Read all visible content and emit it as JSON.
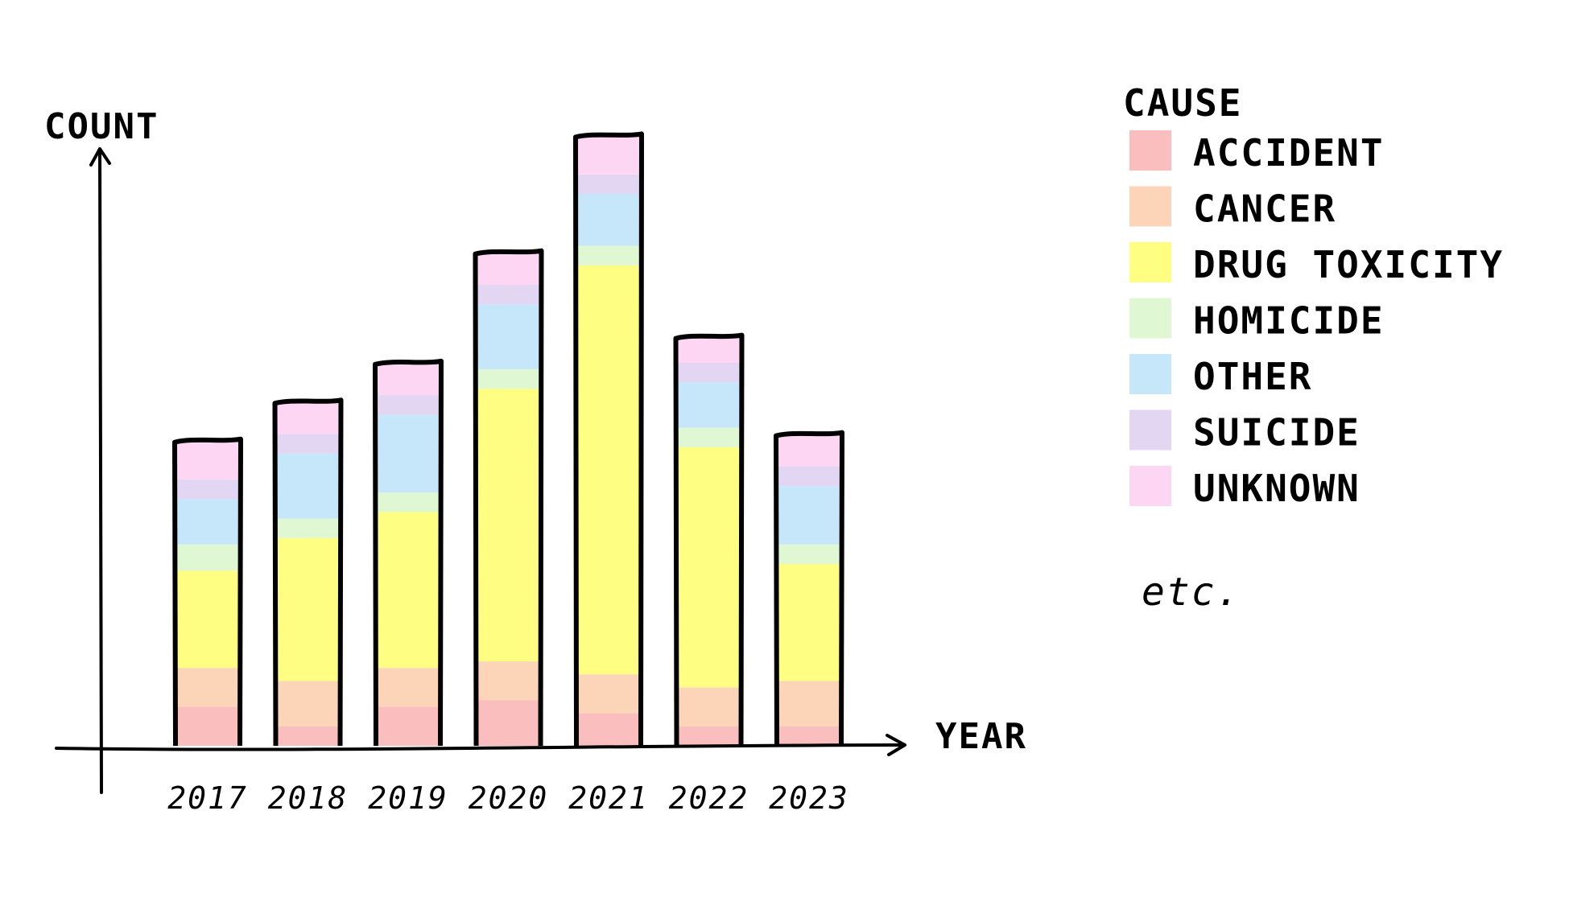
{
  "chart_data": {
    "type": "bar",
    "stacked": true,
    "xlabel": "YEAR",
    "ylabel": "COUNT",
    "categories": [
      "2017",
      "2018",
      "2019",
      "2020",
      "2021",
      "2022",
      "2023"
    ],
    "ylim": [
      0,
      100
    ],
    "series": [
      {
        "name": "ACCIDENT",
        "color": "#f9a8a8",
        "values": [
          6,
          3,
          6,
          7,
          5,
          3,
          3
        ]
      },
      {
        "name": "CANCER",
        "color": "#fbc7a0",
        "values": [
          6,
          7,
          6,
          6,
          6,
          6,
          7
        ]
      },
      {
        "name": "DRUG TOXICITY",
        "color": "#fdfd5a",
        "values": [
          15,
          22,
          24,
          42,
          63,
          37,
          18
        ]
      },
      {
        "name": "HOMICIDE",
        "color": "#d4f5c4",
        "values": [
          4,
          3,
          3,
          3,
          3,
          3,
          3
        ]
      },
      {
        "name": "OTHER",
        "color": "#b3ddf8",
        "values": [
          7,
          10,
          12,
          10,
          8,
          7,
          9
        ]
      },
      {
        "name": "SUICIDE",
        "color": "#d8c8ee",
        "values": [
          3,
          3,
          3,
          3,
          3,
          3,
          3
        ]
      },
      {
        "name": "UNKNOWN",
        "color": "#fbc8ef",
        "values": [
          6,
          5,
          5,
          5,
          6,
          4,
          5
        ]
      }
    ],
    "legend": {
      "title": "CAUSE",
      "position": "right",
      "note": "etc."
    },
    "grid": false
  }
}
